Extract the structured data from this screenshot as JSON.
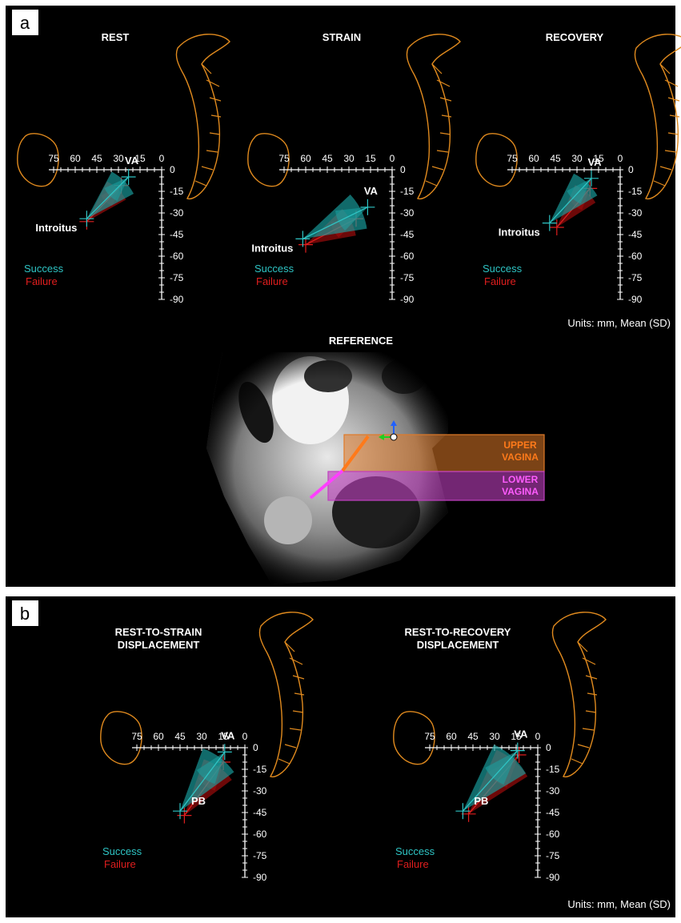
{
  "panel_a": {
    "label": "a",
    "titles": {
      "rest": "REST",
      "strain": "STRAIN",
      "recovery": "RECOVERY"
    },
    "axis_x_ticks": [
      "75",
      "60",
      "45",
      "30",
      "15",
      "0"
    ],
    "axis_y_ticks": [
      "0",
      "-15",
      "-30",
      "-45",
      "-60",
      "-75",
      "-90"
    ],
    "points": {
      "va": "VA",
      "introitus": "Introitus"
    },
    "legend": {
      "success": "Success",
      "failure": "Failure"
    },
    "units": "Units: mm, Mean (SD)",
    "reference": {
      "title": "REFERENCE",
      "upper_vagina": [
        "UPPER",
        "VAGINA"
      ],
      "lower_vagina": [
        "LOWER",
        "VAGINA"
      ]
    }
  },
  "panel_b": {
    "label": "b",
    "titles": {
      "strain": [
        "REST-TO-STRAIN",
        "DISPLACEMENT"
      ],
      "recovery": [
        "REST-TO-RECOVERY",
        "DISPLACEMENT"
      ]
    },
    "axis_x_ticks": [
      "75",
      "60",
      "45",
      "30",
      "15",
      "0"
    ],
    "axis_y_ticks": [
      "0",
      "-15",
      "-30",
      "-45",
      "-60",
      "-75",
      "-90"
    ],
    "points": {
      "va": "VA",
      "pb": "PB"
    },
    "legend": {
      "success": "Success",
      "failure": "Failure"
    },
    "units": "Units: mm, Mean (SD)"
  },
  "colors": {
    "success": "#2ec4c4",
    "success_fill": "#1aa3a3",
    "failure": "#e01e1e",
    "failure_fill": "#a80d0d",
    "bone_outline": "#e08a1e",
    "upper_vagina": "#e07a28",
    "lower_vagina": "#c040c0",
    "background": "#000000",
    "frame": "#ffffff"
  },
  "chart_data": [
    {
      "type": "scatter",
      "title": "REST",
      "xlim": [
        75,
        0
      ],
      "ylim": [
        -90,
        0
      ],
      "series": [
        {
          "name": "Success",
          "points": [
            {
              "label": "VA",
              "x": 23,
              "y": -5
            },
            {
              "label": "Introitus",
              "x": 52,
              "y": -34
            }
          ]
        },
        {
          "name": "Failure",
          "points": [
            {
              "label": "VA",
              "x": 28,
              "y": -11
            },
            {
              "label": "Introitus",
              "x": 52,
              "y": -36
            }
          ]
        }
      ]
    },
    {
      "type": "scatter",
      "title": "STRAIN",
      "xlim": [
        75,
        0
      ],
      "ylim": [
        -90,
        0
      ],
      "series": [
        {
          "name": "Success",
          "points": [
            {
              "label": "VA",
              "x": 17,
              "y": -26
            },
            {
              "label": "Introitus",
              "x": 62,
              "y": -48
            }
          ]
        },
        {
          "name": "Failure",
          "points": [
            {
              "label": "VA",
              "x": 25,
              "y": -34
            },
            {
              "label": "Introitus",
              "x": 60,
              "y": -52
            }
          ]
        }
      ]
    },
    {
      "type": "scatter",
      "title": "RECOVERY",
      "xlim": [
        75,
        0
      ],
      "ylim": [
        -90,
        0
      ],
      "series": [
        {
          "name": "Success",
          "points": [
            {
              "label": "VA",
              "x": 20,
              "y": -6
            },
            {
              "label": "Introitus",
              "x": 49,
              "y": -37
            }
          ]
        },
        {
          "name": "Failure",
          "points": [
            {
              "label": "VA",
              "x": 21,
              "y": -13
            },
            {
              "label": "Introitus",
              "x": 44,
              "y": -40
            }
          ]
        }
      ]
    },
    {
      "type": "scatter",
      "title": "REST-TO-STRAIN DISPLACEMENT",
      "xlim": [
        75,
        0
      ],
      "ylim": [
        -90,
        0
      ],
      "series": [
        {
          "name": "Success",
          "points": [
            {
              "label": "VA",
              "x": 14,
              "y": -3
            },
            {
              "label": "PB",
              "x": 45,
              "y": -44
            }
          ]
        },
        {
          "name": "Failure",
          "points": [
            {
              "label": "VA",
              "x": 15,
              "y": -10
            },
            {
              "label": "PB",
              "x": 42,
              "y": -47
            }
          ]
        }
      ]
    },
    {
      "type": "scatter",
      "title": "REST-TO-RECOVERY DISPLACEMENT",
      "xlim": [
        75,
        0
      ],
      "ylim": [
        -90,
        0
      ],
      "series": [
        {
          "name": "Success",
          "points": [
            {
              "label": "VA",
              "x": 14,
              "y": -2
            },
            {
              "label": "PB",
              "x": 52,
              "y": -44
            }
          ]
        },
        {
          "name": "Failure",
          "points": [
            {
              "label": "VA",
              "x": 13,
              "y": -5
            },
            {
              "label": "PB",
              "x": 48,
              "y": -46
            }
          ]
        }
      ]
    }
  ]
}
